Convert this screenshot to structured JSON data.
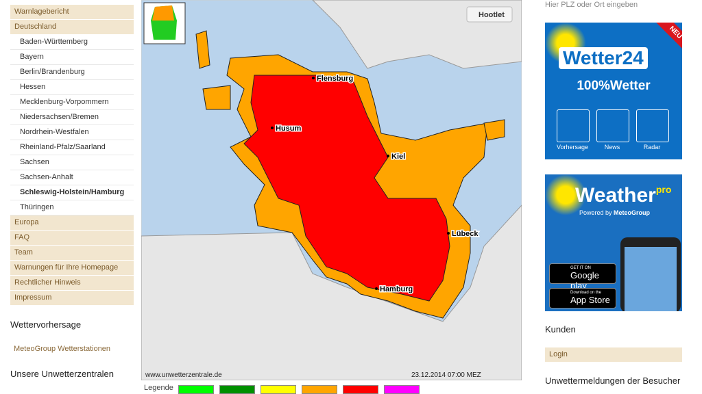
{
  "search_placeholder": "Hier PLZ oder Ort eingeben",
  "nav": [
    {
      "label": "Warnlagebericht"
    },
    {
      "label": "Deutschland",
      "children": [
        "Baden-Württemberg",
        "Bayern",
        "Berlin/Brandenburg",
        "Hessen",
        "Mecklenburg-Vorpommern",
        "Niedersachsen/Bremen",
        "Nordrhein-Westfalen",
        "Rheinland-Pfalz/Saarland",
        "Sachsen",
        "Sachsen-Anhalt",
        "Schleswig-Holstein/Hamburg",
        "Thüringen"
      ]
    },
    {
      "label": "Europa"
    },
    {
      "label": "FAQ"
    },
    {
      "label": "Team"
    },
    {
      "label": "Warnungen für Ihre Homepage"
    },
    {
      "label": "Rechtlicher Hinweis"
    },
    {
      "label": "Impressum"
    }
  ],
  "sections": [
    "Wettervorhersage",
    "MeteoGroup Wetterstationen",
    "Unsere Unwetterzentralen"
  ],
  "map": {
    "hootlet": "Hootlet",
    "cities": [
      "Flensburg",
      "Husum",
      "Kiel",
      "Lübeck",
      "Hamburg"
    ],
    "source": "www.unwetterzentrale.de",
    "timestamp": "23.12.2014 07:00 MEZ"
  },
  "legend": {
    "label": "Legende",
    "colors": [
      "#00ff00",
      "#009000",
      "#ffff00",
      "#ffa500",
      "#ff0000",
      "#ff00ff"
    ]
  },
  "ad_wetter24": {
    "badge": "NEU",
    "brand": "Wetter24",
    "slogan": "100%Wetter",
    "buttons": [
      "Vorhersage",
      "News",
      "Radar"
    ]
  },
  "ad_weatherpro": {
    "brand": "Weather",
    "brand_suffix": "pro",
    "powered": "Powered by",
    "partner": "MeteoGroup",
    "google_top": "GET IT ON",
    "google": "Google play",
    "apple_top": "Download on the",
    "apple": "App Store"
  },
  "right": {
    "customers": "Kunden",
    "login": "Login",
    "reports": "Unwettermeldungen der Besucher"
  }
}
